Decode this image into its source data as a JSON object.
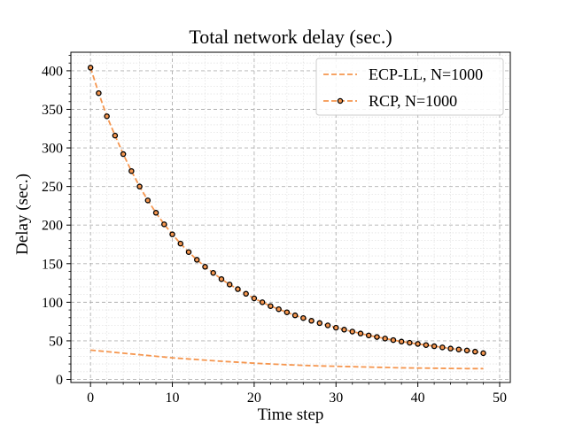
{
  "chart_data": {
    "type": "line",
    "title": "Total network delay (sec.)",
    "xlabel": "Time step",
    "ylabel": "Delay (sec.)",
    "xlim": [
      -2.4,
      51.3
    ],
    "ylim": [
      -4,
      424
    ],
    "xticks": [
      0,
      10,
      20,
      30,
      40,
      50
    ],
    "yticks": [
      0,
      50,
      100,
      150,
      200,
      250,
      300,
      350,
      400
    ],
    "grid": true,
    "legend_position": "top-right",
    "colors": {
      "series": "#f5964f",
      "marker_edge": "#000000",
      "grid_major": "#b0b0b0",
      "grid_minor": "#e3e3e3"
    },
    "series": [
      {
        "name": "ECP-LL, N=1000",
        "style": "dashed",
        "marker": "none",
        "x": [
          0,
          2,
          4,
          6,
          8,
          10,
          12,
          14,
          16,
          18,
          20,
          22,
          24,
          26,
          28,
          30,
          32,
          34,
          36,
          38,
          40,
          42,
          44,
          46,
          48
        ],
        "values": [
          38,
          36,
          34,
          32,
          30,
          28,
          26.5,
          25,
          23.5,
          22.3,
          21,
          20,
          19,
          18.2,
          17.5,
          17,
          16.5,
          16,
          15.5,
          15,
          14.7,
          14.5,
          14.2,
          14,
          14
        ]
      },
      {
        "name": "RCP, N=1000",
        "style": "dashed",
        "marker": "circle",
        "x": [
          0,
          1,
          2,
          3,
          4,
          5,
          6,
          7,
          8,
          9,
          10,
          11,
          12,
          13,
          14,
          15,
          16,
          17,
          18,
          19,
          20,
          21,
          22,
          23,
          24,
          25,
          26,
          27,
          28,
          29,
          30,
          31,
          32,
          33,
          34,
          35,
          36,
          37,
          38,
          39,
          40,
          41,
          42,
          43,
          44,
          45,
          46,
          47,
          48
        ],
        "values": [
          404,
          371,
          341,
          316,
          292,
          270,
          250,
          232,
          216,
          201,
          188,
          176,
          165,
          155,
          146,
          138,
          130,
          123,
          117,
          111,
          105,
          100,
          95,
          91,
          87,
          83,
          79.5,
          76,
          73,
          70,
          67,
          64.5,
          62,
          59.5,
          57,
          55,
          53,
          51,
          49,
          47.5,
          46,
          44.5,
          43,
          41.5,
          40,
          38.8,
          37.5,
          36,
          34
        ]
      }
    ]
  }
}
